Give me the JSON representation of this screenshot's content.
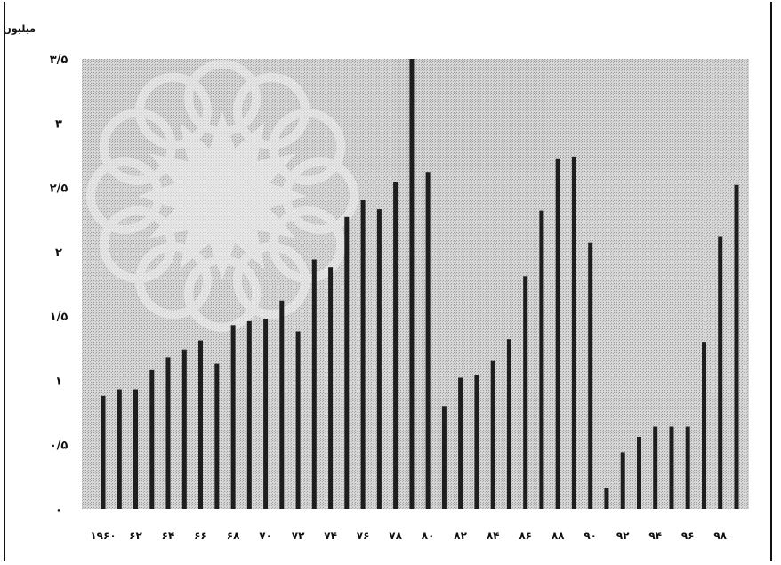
{
  "chart_data": {
    "type": "bar",
    "title": "",
    "ylabel": "میلیون بشکه در روز",
    "xlabel": "",
    "ylim": [
      0,
      3.5
    ],
    "y_ticks": [
      {
        "value": 0,
        "label": "۰"
      },
      {
        "value": 0.5,
        "label": "۰/۵"
      },
      {
        "value": 1,
        "label": "۱"
      },
      {
        "value": 1.5,
        "label": "۱/۵"
      },
      {
        "value": 2,
        "label": "۲"
      },
      {
        "value": 2.5,
        "label": "۲/۵"
      },
      {
        "value": 3,
        "label": "۳"
      },
      {
        "value": 3.5,
        "label": "۳/۵"
      }
    ],
    "categories": [
      "1960",
      "1961",
      "1962",
      "1963",
      "1964",
      "1965",
      "1966",
      "1967",
      "1968",
      "1969",
      "1970",
      "1971",
      "1972",
      "1973",
      "1974",
      "1975",
      "1976",
      "1977",
      "1978",
      "1979",
      "1980",
      "1981",
      "1982",
      "1983",
      "1984",
      "1985",
      "1986",
      "1987",
      "1988",
      "1989",
      "1990",
      "1991",
      "1992",
      "1993",
      "1994",
      "1995",
      "1996",
      "1997",
      "1998",
      "1999"
    ],
    "values": [
      0.88,
      0.93,
      0.93,
      1.08,
      1.18,
      1.24,
      1.31,
      1.13,
      1.43,
      1.46,
      1.48,
      1.62,
      1.38,
      1.94,
      1.88,
      2.27,
      2.4,
      2.33,
      2.54,
      3.5,
      2.62,
      0.8,
      1.02,
      1.04,
      1.15,
      1.32,
      1.81,
      2.32,
      2.72,
      2.74,
      2.07,
      0.16,
      0.44,
      0.56,
      0.64,
      0.64,
      0.64,
      1.3,
      2.12,
      2.52
    ],
    "x_tick_labels": [
      {
        "category": "1960",
        "label": "۱۹۶۰"
      },
      {
        "category": "1962",
        "label": "۶۲"
      },
      {
        "category": "1964",
        "label": "۶۴"
      },
      {
        "category": "1966",
        "label": "۶۶"
      },
      {
        "category": "1968",
        "label": "۶۸"
      },
      {
        "category": "1970",
        "label": "۷۰"
      },
      {
        "category": "1972",
        "label": "۷۲"
      },
      {
        "category": "1974",
        "label": "۷۴"
      },
      {
        "category": "1976",
        "label": "۷۶"
      },
      {
        "category": "1978",
        "label": "۷۸"
      },
      {
        "category": "1980",
        "label": "۸۰"
      },
      {
        "category": "1982",
        "label": "۸۲"
      },
      {
        "category": "1984",
        "label": "۸۴"
      },
      {
        "category": "1986",
        "label": "۸۶"
      },
      {
        "category": "1988",
        "label": "۸۸"
      },
      {
        "category": "1990",
        "label": "۹۰"
      },
      {
        "category": "1992",
        "label": "۹۲"
      },
      {
        "category": "1994",
        "label": "۹۴"
      },
      {
        "category": "1996",
        "label": "۹۶"
      },
      {
        "category": "1998",
        "label": "۹۸"
      }
    ],
    "grid": false,
    "legend": "none",
    "colors": {
      "bar": "#1e1e1e",
      "background": "#cfcfcf",
      "pattern": "#bdbdbd"
    }
  }
}
